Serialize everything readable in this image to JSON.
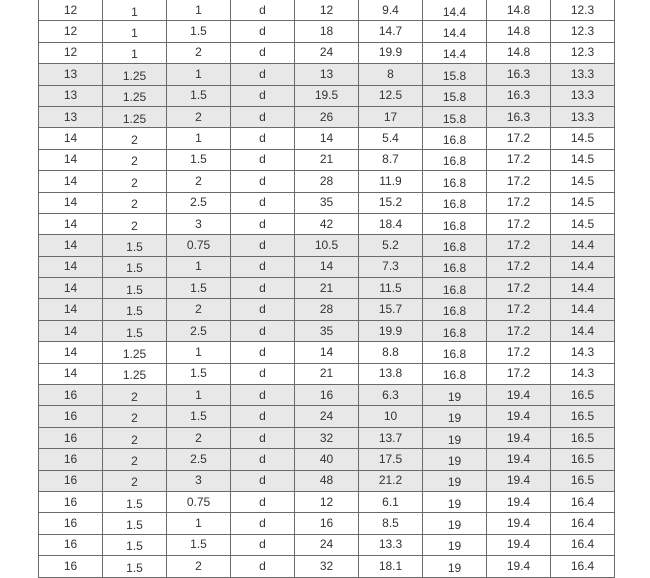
{
  "rows": [
    {
      "c": [
        "12",
        "1",
        "1",
        "d",
        "12",
        "9.4",
        "14.4",
        "14.8",
        "12.3"
      ],
      "shaded": false
    },
    {
      "c": [
        "12",
        "1",
        "1.5",
        "d",
        "18",
        "14.7",
        "14.4",
        "14.8",
        "12.3"
      ],
      "shaded": false
    },
    {
      "c": [
        "12",
        "1",
        "2",
        "d",
        "24",
        "19.9",
        "14.4",
        "14.8",
        "12.3"
      ],
      "shaded": false
    },
    {
      "c": [
        "13",
        "1.25",
        "1",
        "d",
        "13",
        "8",
        "15.8",
        "16.3",
        "13.3"
      ],
      "shaded": true
    },
    {
      "c": [
        "13",
        "1.25",
        "1.5",
        "d",
        "19.5",
        "12.5",
        "15.8",
        "16.3",
        "13.3"
      ],
      "shaded": true
    },
    {
      "c": [
        "13",
        "1.25",
        "2",
        "d",
        "26",
        "17",
        "15.8",
        "16.3",
        "13.3"
      ],
      "shaded": true
    },
    {
      "c": [
        "14",
        "2",
        "1",
        "d",
        "14",
        "5.4",
        "16.8",
        "17.2",
        "14.5"
      ],
      "shaded": false
    },
    {
      "c": [
        "14",
        "2",
        "1.5",
        "d",
        "21",
        "8.7",
        "16.8",
        "17.2",
        "14.5"
      ],
      "shaded": false
    },
    {
      "c": [
        "14",
        "2",
        "2",
        "d",
        "28",
        "11.9",
        "16.8",
        "17.2",
        "14.5"
      ],
      "shaded": false
    },
    {
      "c": [
        "14",
        "2",
        "2.5",
        "d",
        "35",
        "15.2",
        "16.8",
        "17.2",
        "14.5"
      ],
      "shaded": false
    },
    {
      "c": [
        "14",
        "2",
        "3",
        "d",
        "42",
        "18.4",
        "16.8",
        "17.2",
        "14.5"
      ],
      "shaded": false
    },
    {
      "c": [
        "14",
        "1.5",
        "0.75",
        "d",
        "10.5",
        "5.2",
        "16.8",
        "17.2",
        "14.4"
      ],
      "shaded": true
    },
    {
      "c": [
        "14",
        "1.5",
        "1",
        "d",
        "14",
        "7.3",
        "16.8",
        "17.2",
        "14.4"
      ],
      "shaded": true
    },
    {
      "c": [
        "14",
        "1.5",
        "1.5",
        "d",
        "21",
        "11.5",
        "16.8",
        "17.2",
        "14.4"
      ],
      "shaded": true
    },
    {
      "c": [
        "14",
        "1.5",
        "2",
        "d",
        "28",
        "15.7",
        "16.8",
        "17.2",
        "14.4"
      ],
      "shaded": true
    },
    {
      "c": [
        "14",
        "1.5",
        "2.5",
        "d",
        "35",
        "19.9",
        "16.8",
        "17.2",
        "14.4"
      ],
      "shaded": true
    },
    {
      "c": [
        "14",
        "1.25",
        "1",
        "d",
        "14",
        "8.8",
        "16.8",
        "17.2",
        "14.3"
      ],
      "shaded": false
    },
    {
      "c": [
        "14",
        "1.25",
        "1.5",
        "d",
        "21",
        "13.8",
        "16.8",
        "17.2",
        "14.3"
      ],
      "shaded": false
    },
    {
      "c": [
        "16",
        "2",
        "1",
        "d",
        "16",
        "6.3",
        "19",
        "19.4",
        "16.5"
      ],
      "shaded": true
    },
    {
      "c": [
        "16",
        "2",
        "1.5",
        "d",
        "24",
        "10",
        "19",
        "19.4",
        "16.5"
      ],
      "shaded": true
    },
    {
      "c": [
        "16",
        "2",
        "2",
        "d",
        "32",
        "13.7",
        "19",
        "19.4",
        "16.5"
      ],
      "shaded": true
    },
    {
      "c": [
        "16",
        "2",
        "2.5",
        "d",
        "40",
        "17.5",
        "19",
        "19.4",
        "16.5"
      ],
      "shaded": true
    },
    {
      "c": [
        "16",
        "2",
        "3",
        "d",
        "48",
        "21.2",
        "19",
        "19.4",
        "16.5"
      ],
      "shaded": true
    },
    {
      "c": [
        "16",
        "1.5",
        "0.75",
        "d",
        "12",
        "6.1",
        "19",
        "19.4",
        "16.4"
      ],
      "shaded": false
    },
    {
      "c": [
        "16",
        "1.5",
        "1",
        "d",
        "16",
        "8.5",
        "19",
        "19.4",
        "16.4"
      ],
      "shaded": false
    },
    {
      "c": [
        "16",
        "1.5",
        "1.5",
        "d",
        "24",
        "13.3",
        "19",
        "19.4",
        "16.4"
      ],
      "shaded": false
    },
    {
      "c": [
        "16",
        "1.5",
        "2",
        "d",
        "32",
        "18.1",
        "19",
        "19.4",
        "16.4"
      ],
      "shaded": false
    }
  ]
}
